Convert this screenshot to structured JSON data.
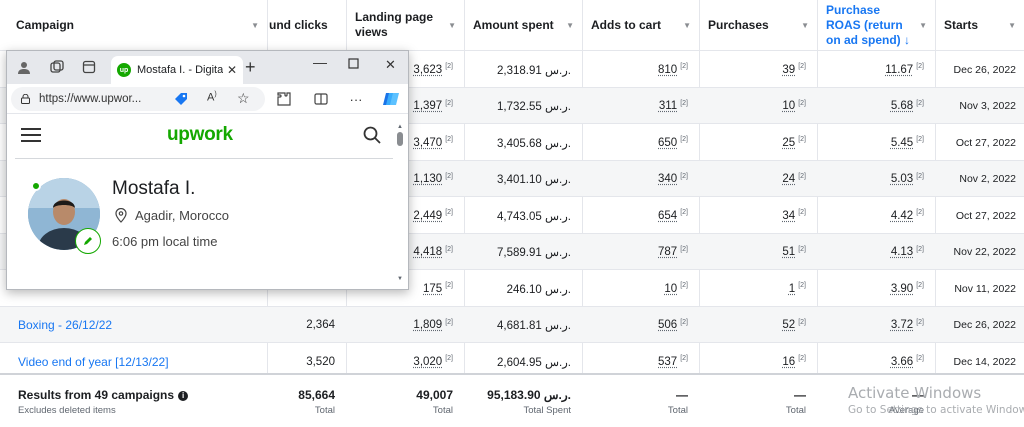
{
  "table": {
    "headers": {
      "campaign": "Campaign",
      "link_clicks": "und clicks",
      "landing_views": "Landing page views",
      "amount_spent": "Amount spent",
      "adds_to_cart": "Adds to cart",
      "purchases": "Purchases",
      "purchase_roas": "Purchase ROAS (return on ad spend) ↓",
      "starts": "Starts"
    },
    "info_mark": "[2]",
    "rows": [
      {
        "campaign": "",
        "clicks": "",
        "views": "3,623",
        "spent": "2,318.91 ر.س.",
        "cart": "810",
        "purchases": "39",
        "roas": "11.67",
        "starts": "Dec 26, 2022"
      },
      {
        "campaign": "",
        "clicks": "",
        "views": "1,397",
        "spent": "1,732.55 ر.س.",
        "cart": "311",
        "purchases": "10",
        "roas": "5.68",
        "starts": "Nov 3, 2022"
      },
      {
        "campaign": "",
        "clicks": "",
        "views": "3,470",
        "spent": "3,405.68 ر.س.",
        "cart": "650",
        "purchases": "25",
        "roas": "5.45",
        "starts": "Oct 27, 2022"
      },
      {
        "campaign": "",
        "clicks": "",
        "views": "1,130",
        "spent": "3,401.10 ر.س.",
        "cart": "340",
        "purchases": "24",
        "roas": "5.03",
        "starts": "Nov 2, 2022"
      },
      {
        "campaign": "",
        "clicks": "",
        "views": "2,449",
        "spent": "4,743.05 ر.س.",
        "cart": "654",
        "purchases": "34",
        "roas": "4.42",
        "starts": "Oct 27, 2022"
      },
      {
        "campaign": "",
        "clicks": "",
        "views": "4,418",
        "spent": "7,589.91 ر.س.",
        "cart": "787",
        "purchases": "51",
        "roas": "4.13",
        "starts": "Nov 22, 2022"
      },
      {
        "campaign": "",
        "clicks": "",
        "views": "175",
        "spent": "246.10 ر.س.",
        "cart": "10",
        "purchases": "1",
        "roas": "3.90",
        "starts": "Nov 11, 2022"
      },
      {
        "campaign": "Boxing - 26/12/22",
        "clicks": "2,364",
        "views": "1,809",
        "spent": "4,681.81 ر.س.",
        "cart": "506",
        "purchases": "52",
        "roas": "3.72",
        "starts": "Dec 26, 2022"
      },
      {
        "campaign": "Video end of year [12/13/22]",
        "clicks": "3,520",
        "views": "3,020",
        "spent": "2,604.95 ر.س.",
        "cart": "537",
        "purchases": "16",
        "roas": "3.66",
        "starts": "Dec 14, 2022"
      }
    ],
    "footer": {
      "title": "Results from 49 campaigns",
      "subtitle": "Excludes deleted items",
      "clicks": "85,664",
      "clicks_label": "Total",
      "views": "49,007",
      "views_label": "Total",
      "spent": "95,183.90 ر.س.",
      "spent_label": "Total Spent",
      "cart": "—",
      "cart_label": "Total",
      "purchases": "—",
      "purchases_label": "Total",
      "roas": "—",
      "roas_label": "Average"
    }
  },
  "browser": {
    "tab_title": "Mostafa I. - Digita",
    "favicon_text": "up",
    "url": "https://www.upwor...",
    "logo": "upwork",
    "profile": {
      "name": "Mostafa I.",
      "location": "Agadir, Morocco",
      "local_time": "6:06 pm local time"
    }
  },
  "watermark": {
    "line1": "Activate Windows",
    "line2": "Go to Settings to activate Windows."
  },
  "colors": {
    "link": "#1877f2",
    "upwork_green": "#14a800",
    "border": "#e4e6eb"
  }
}
